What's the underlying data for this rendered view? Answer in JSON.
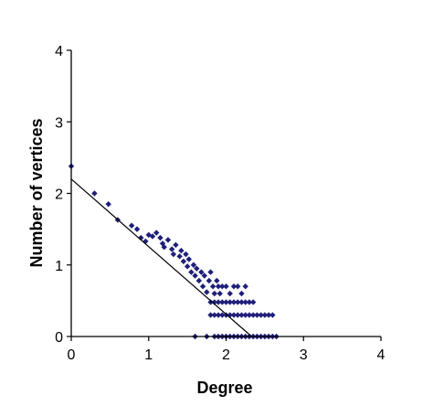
{
  "chart_data": {
    "type": "scatter",
    "title": "",
    "xlabel": "Degree",
    "ylabel": "Number of vertices",
    "xlim": [
      0,
      4
    ],
    "ylim": [
      0,
      4
    ],
    "x_ticks": [
      "0",
      "1",
      "2",
      "3",
      "4"
    ],
    "y_ticks": [
      "0",
      "1",
      "2",
      "3",
      "4"
    ],
    "grid": false,
    "legend": "none",
    "marker": "diamond",
    "marker_color": "#1f1f7a",
    "line_color": "#000000",
    "trendline": {
      "x": [
        0,
        2.33
      ],
      "y": [
        2.2,
        0
      ]
    },
    "series": [
      {
        "points": [
          [
            0.0,
            2.38
          ],
          [
            0.3,
            2.0
          ],
          [
            0.48,
            1.85
          ],
          [
            0.6,
            1.63
          ],
          [
            0.78,
            1.55
          ],
          [
            0.85,
            1.5
          ],
          [
            0.9,
            1.38
          ],
          [
            0.96,
            1.33
          ],
          [
            1.0,
            1.42
          ],
          [
            1.05,
            1.4
          ],
          [
            1.1,
            1.45
          ],
          [
            1.15,
            1.38
          ],
          [
            1.18,
            1.3
          ],
          [
            1.2,
            1.25
          ],
          [
            1.25,
            1.35
          ],
          [
            1.3,
            1.22
          ],
          [
            1.32,
            1.15
          ],
          [
            1.35,
            1.28
          ],
          [
            1.4,
            1.12
          ],
          [
            1.42,
            1.2
          ],
          [
            1.45,
            1.05
          ],
          [
            1.48,
            1.15
          ],
          [
            1.5,
            0.98
          ],
          [
            1.52,
            1.08
          ],
          [
            1.55,
            0.9
          ],
          [
            1.58,
            1.0
          ],
          [
            1.6,
            0.85
          ],
          [
            1.62,
            0.95
          ],
          [
            1.65,
            0.78
          ],
          [
            1.68,
            0.9
          ],
          [
            1.7,
            0.7
          ],
          [
            1.72,
            0.85
          ],
          [
            1.75,
            0.62
          ],
          [
            1.78,
            0.78
          ],
          [
            1.8,
            0.9
          ],
          [
            1.83,
            0.7
          ],
          [
            1.85,
            0.6
          ],
          [
            1.88,
            0.78
          ],
          [
            1.9,
            0.7
          ],
          [
            1.92,
            0.6
          ],
          [
            1.95,
            0.7
          ],
          [
            2.0,
            0.7
          ],
          [
            2.05,
            0.6
          ],
          [
            2.1,
            0.7
          ],
          [
            2.15,
            0.7
          ],
          [
            2.2,
            0.6
          ],
          [
            2.25,
            0.7
          ],
          [
            1.8,
            0.48
          ],
          [
            1.85,
            0.48
          ],
          [
            1.9,
            0.48
          ],
          [
            1.95,
            0.48
          ],
          [
            2.0,
            0.48
          ],
          [
            2.05,
            0.48
          ],
          [
            2.1,
            0.48
          ],
          [
            2.15,
            0.48
          ],
          [
            2.2,
            0.48
          ],
          [
            2.25,
            0.48
          ],
          [
            2.3,
            0.48
          ],
          [
            2.35,
            0.48
          ],
          [
            1.8,
            0.3
          ],
          [
            1.85,
            0.3
          ],
          [
            1.9,
            0.3
          ],
          [
            1.95,
            0.3
          ],
          [
            2.0,
            0.3
          ],
          [
            2.05,
            0.3
          ],
          [
            2.1,
            0.3
          ],
          [
            2.15,
            0.3
          ],
          [
            2.2,
            0.3
          ],
          [
            2.25,
            0.3
          ],
          [
            2.3,
            0.3
          ],
          [
            2.35,
            0.3
          ],
          [
            2.4,
            0.3
          ],
          [
            2.45,
            0.3
          ],
          [
            2.5,
            0.3
          ],
          [
            2.55,
            0.3
          ],
          [
            2.6,
            0.3
          ],
          [
            1.6,
            0.0
          ],
          [
            1.75,
            0.0
          ],
          [
            1.85,
            0.0
          ],
          [
            1.9,
            0.0
          ],
          [
            1.95,
            0.0
          ],
          [
            2.0,
            0.0
          ],
          [
            2.05,
            0.0
          ],
          [
            2.1,
            0.0
          ],
          [
            2.15,
            0.0
          ],
          [
            2.2,
            0.0
          ],
          [
            2.25,
            0.0
          ],
          [
            2.3,
            0.0
          ],
          [
            2.35,
            0.0
          ],
          [
            2.4,
            0.0
          ],
          [
            2.45,
            0.0
          ],
          [
            2.5,
            0.0
          ],
          [
            2.55,
            0.0
          ],
          [
            2.6,
            0.0
          ],
          [
            2.65,
            0.0
          ]
        ]
      }
    ]
  }
}
